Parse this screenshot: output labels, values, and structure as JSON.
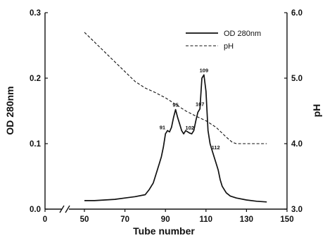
{
  "chart_data": {
    "type": "line",
    "title": "",
    "xlabel": "Tube number",
    "ylabel_left": "OD 280nm",
    "ylabel_right": "pH",
    "xlim": [
      0,
      150
    ],
    "ylim_left": [
      0.0,
      0.3
    ],
    "ylim_right": [
      3.0,
      6.0
    ],
    "x_ticks": [
      0,
      50,
      70,
      90,
      110,
      130,
      150
    ],
    "x_tick_labels": [
      "0",
      "50",
      "70",
      "90",
      "110",
      "130",
      "150"
    ],
    "x_axis_break": true,
    "y_left_ticks": [
      0.0,
      0.1,
      0.2,
      0.3
    ],
    "y_left_tick_labels": [
      "0.0",
      "0.1",
      "0.2",
      "0.3"
    ],
    "y_right_ticks": [
      3.0,
      4.0,
      5.0,
      6.0
    ],
    "y_right_tick_labels": [
      "3.0",
      "4.0",
      "5.0",
      "6.0"
    ],
    "grid": false,
    "legend_position": "top-right",
    "series": [
      {
        "name": "OD 280nm",
        "axis": "left",
        "style": "solid",
        "x": [
          50,
          55,
          60,
          65,
          70,
          75,
          80,
          82,
          84,
          85,
          86,
          87,
          88,
          89,
          90,
          91,
          92,
          93,
          94,
          95,
          96,
          97,
          98,
          99,
          100,
          101,
          102,
          103,
          104,
          105,
          106,
          107,
          108,
          109,
          110,
          111,
          112,
          113,
          114,
          115,
          116,
          117,
          118,
          120,
          122,
          125,
          130,
          135,
          140
        ],
        "y": [
          0.013,
          0.013,
          0.014,
          0.015,
          0.017,
          0.019,
          0.022,
          0.03,
          0.04,
          0.05,
          0.06,
          0.07,
          0.08,
          0.095,
          0.115,
          0.12,
          0.118,
          0.125,
          0.14,
          0.152,
          0.14,
          0.13,
          0.12,
          0.115,
          0.12,
          0.118,
          0.116,
          0.115,
          0.12,
          0.135,
          0.148,
          0.153,
          0.2,
          0.205,
          0.18,
          0.12,
          0.1,
          0.09,
          0.08,
          0.07,
          0.06,
          0.045,
          0.035,
          0.025,
          0.02,
          0.017,
          0.014,
          0.012,
          0.011
        ]
      },
      {
        "name": "pH",
        "axis": "right",
        "style": "dashed",
        "x": [
          50,
          55,
          60,
          65,
          70,
          75,
          80,
          85,
          90,
          95,
          100,
          105,
          110,
          115,
          120,
          123,
          125,
          130,
          135,
          140
        ],
        "y": [
          5.7,
          5.55,
          5.4,
          5.25,
          5.1,
          4.95,
          4.85,
          4.78,
          4.7,
          4.6,
          4.5,
          4.42,
          4.35,
          4.25,
          4.1,
          4.02,
          4.0,
          4.0,
          4.0,
          4.0
        ]
      }
    ],
    "annotations": [
      {
        "text": "91",
        "x": 91,
        "y": 0.12
      },
      {
        "text": "95",
        "x": 95,
        "y": 0.152
      },
      {
        "text": "102",
        "x": 102,
        "y": 0.116
      },
      {
        "text": "107",
        "x": 107,
        "y": 0.153
      },
      {
        "text": "109",
        "x": 109,
        "y": 0.205
      },
      {
        "text": "112",
        "x": 112,
        "y": 0.1
      }
    ]
  }
}
